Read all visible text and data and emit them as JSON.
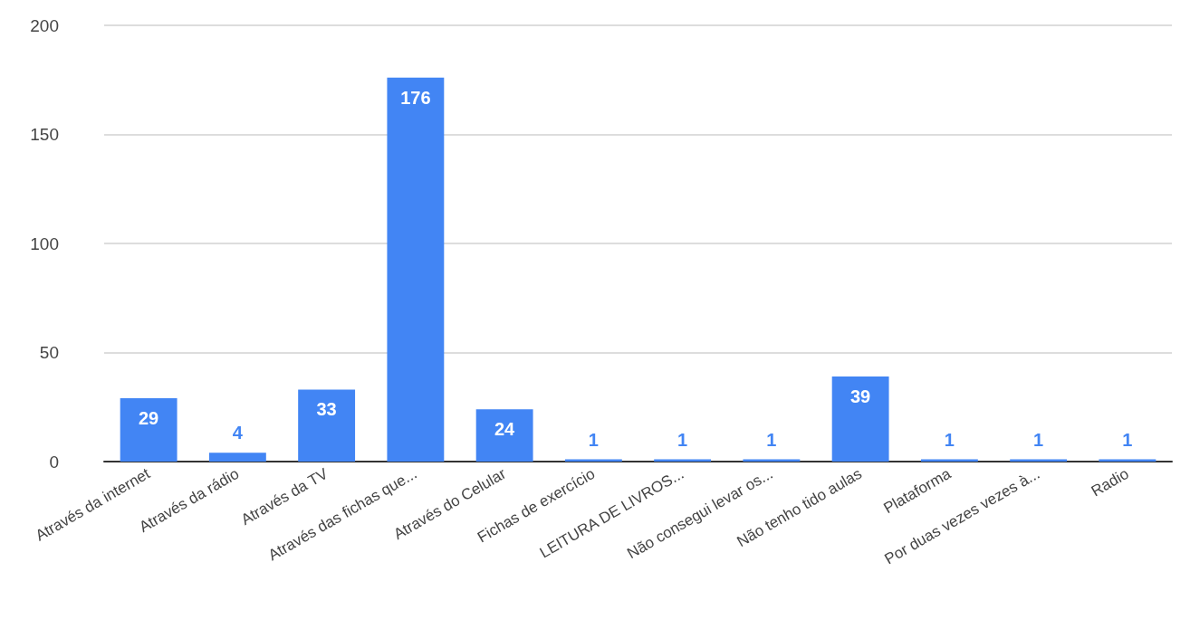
{
  "chart_data": {
    "type": "bar",
    "categories": [
      "Através da internet",
      "Através da rádio",
      "Através da TV",
      "Através das fichas que...",
      "Através do Celular",
      "Fichas de exercício",
      "LEITURA DE LIVROS...",
      "Não consegui levar os...",
      "Não tenho tido aulas",
      "Plataforma",
      "Por duas vezes vezes à...",
      "Radio"
    ],
    "values": [
      29,
      4,
      33,
      176,
      24,
      1,
      1,
      1,
      39,
      1,
      1,
      1
    ],
    "color": "#4285f4",
    "ylim": [
      0,
      200
    ],
    "yticks": [
      0,
      50,
      100,
      150,
      200
    ],
    "grid": "y",
    "data_labels": true
  }
}
